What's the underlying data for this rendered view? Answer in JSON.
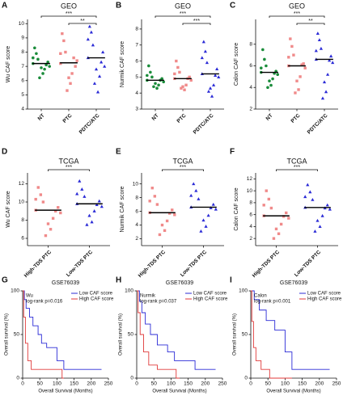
{
  "chart_data": [
    {
      "type": "strip",
      "label": "A",
      "title": "GEO",
      "y_label": "Wu CAF score",
      "categories": [
        "NT",
        "PTC",
        "PDTC/ATC"
      ],
      "colors": [
        "#1a8c3a",
        "#f08a8a",
        "#2b2bd6"
      ],
      "markers": [
        "circle",
        "square",
        "triangle"
      ],
      "values": [
        [
          7.2,
          6.8,
          7.5,
          7.0,
          6.5,
          7.9,
          7.3,
          6.9,
          8.3,
          7.1,
          6.2,
          7.6
        ],
        [
          7.2,
          6.5,
          8.0,
          7.4,
          5.8,
          8.8,
          7.0,
          6.2,
          9.3,
          7.6,
          5.3,
          7.9
        ],
        [
          7.6,
          6.3,
          8.5,
          7.0,
          5.2,
          9.4,
          8.0,
          6.8,
          9.8,
          7.3,
          5.8,
          8.9
        ]
      ],
      "means": [
        7.2,
        7.25,
        7.6
      ],
      "ylim": [
        4,
        10.3
      ],
      "yticks": [
        4,
        5,
        6,
        7,
        8,
        9,
        10
      ],
      "brackets": [
        {
          "label": "***",
          "between": [
            "NT",
            "PDTC/ATC"
          ]
        },
        {
          "label": "**",
          "between": [
            "PTC",
            "PDTC/ATC"
          ]
        }
      ]
    },
    {
      "type": "strip",
      "label": "B",
      "title": "GEO",
      "y_label": "Nurmik CAF score",
      "categories": [
        "NT",
        "PTC",
        "PDTC/ATC"
      ],
      "colors": [
        "#1a8c3a",
        "#f08a8a",
        "#2b2bd6"
      ],
      "markers": [
        "circle",
        "square",
        "triangle"
      ],
      "values": [
        [
          4.8,
          4.5,
          5.0,
          4.7,
          4.3,
          5.3,
          4.9,
          4.6,
          5.7,
          4.8,
          4.4,
          5.1
        ],
        [
          4.9,
          4.5,
          5.3,
          4.8,
          4.2,
          5.6,
          5.0,
          4.4,
          6.0,
          4.9,
          4.3,
          5.2
        ],
        [
          5.2,
          4.5,
          5.9,
          5.0,
          3.8,
          6.6,
          5.5,
          4.3,
          7.2,
          5.1,
          4.1,
          6.2
        ]
      ],
      "means": [
        4.8,
        4.9,
        5.2
      ],
      "ylim": [
        3,
        8.6
      ],
      "yticks": [
        3,
        4,
        5,
        6,
        7,
        8
      ],
      "brackets": [
        {
          "label": "***",
          "between": [
            "NT",
            "PDTC/ATC"
          ]
        },
        {
          "label": "***",
          "between": [
            "PTC",
            "PDTC/ATC"
          ]
        }
      ]
    },
    {
      "type": "strip",
      "label": "C",
      "title": "GEO",
      "y_label": "Calon CAF score",
      "categories": [
        "NT",
        "PTC",
        "PDTC/ATC"
      ],
      "colors": [
        "#1a8c3a",
        "#f08a8a",
        "#2b2bd6"
      ],
      "markers": [
        "circle",
        "square",
        "triangle"
      ],
      "values": [
        [
          5.4,
          4.8,
          6.0,
          5.2,
          4.2,
          6.6,
          5.5,
          4.6,
          7.5,
          5.3,
          4.0,
          5.8
        ],
        [
          6.0,
          5.0,
          7.0,
          5.8,
          3.8,
          7.8,
          6.2,
          4.6,
          8.5,
          6.1,
          3.5,
          6.8
        ],
        [
          6.6,
          5.2,
          7.6,
          6.3,
          3.6,
          8.4,
          6.9,
          4.5,
          9.0,
          6.5,
          3.0,
          7.4
        ]
      ],
      "means": [
        5.4,
        6.0,
        6.6
      ],
      "ylim": [
        2,
        10.3
      ],
      "yticks": [
        2,
        4,
        6,
        8
      ],
      "brackets": [
        {
          "label": "***",
          "between": [
            "NT",
            "PDTC/ATC"
          ]
        },
        {
          "label": "**",
          "between": [
            "PTC",
            "PDTC/ATC"
          ]
        }
      ]
    },
    {
      "type": "strip",
      "label": "D",
      "title": "TCGA",
      "y_label": "Wu CAF score",
      "categories": [
        "High-TDS PTC",
        "Low-TDS PTC"
      ],
      "colors": [
        "#f08a8a",
        "#2b2bd6"
      ],
      "markers": [
        "square",
        "triangle"
      ],
      "values": [
        [
          9.1,
          8.2,
          10.0,
          8.8,
          7.0,
          10.8,
          9.4,
          7.6,
          11.6,
          9.0,
          6.3,
          10.3
        ],
        [
          9.8,
          9.0,
          10.6,
          9.5,
          7.8,
          11.4,
          10.1,
          8.5,
          12.3,
          9.7,
          7.5,
          10.9
        ]
      ],
      "means": [
        9.1,
        9.8
      ],
      "ylim": [
        5.2,
        13.2
      ],
      "yticks": [
        6,
        8,
        10,
        12
      ],
      "brackets": [
        {
          "label": "***",
          "between": [
            "High-TDS PTC",
            "Low-TDS PTC"
          ]
        }
      ]
    },
    {
      "type": "strip",
      "label": "E",
      "title": "TCGA",
      "y_label": "Nurmik CAF score",
      "categories": [
        "High-TDS PTC",
        "Low-TDS PTC"
      ],
      "colors": [
        "#f08a8a",
        "#2b2bd6"
      ],
      "markers": [
        "square",
        "triangle"
      ],
      "values": [
        [
          5.8,
          4.6,
          7.0,
          5.5,
          3.2,
          8.2,
          6.2,
          4.0,
          9.4,
          5.7,
          2.6,
          7.5
        ],
        [
          6.6,
          5.4,
          7.8,
          6.3,
          3.8,
          9.0,
          7.0,
          4.7,
          10.0,
          6.5,
          3.1,
          8.3
        ]
      ],
      "means": [
        5.8,
        6.6
      ],
      "ylim": [
        1,
        11.6
      ],
      "yticks": [
        2,
        4,
        6,
        8,
        10
      ],
      "brackets": [
        {
          "label": "***",
          "between": [
            "High-TDS PTC",
            "Low-TDS PTC"
          ]
        }
      ]
    },
    {
      "type": "strip",
      "label": "F",
      "title": "TCGA",
      "y_label": "Calon CAF score",
      "categories": [
        "High-TDS PTC",
        "Low-TDS PTC"
      ],
      "colors": [
        "#f08a8a",
        "#2b2bd6"
      ],
      "markers": [
        "square",
        "triangle"
      ],
      "values": [
        [
          5.8,
          4.4,
          7.1,
          5.4,
          2.8,
          8.6,
          6.3,
          3.6,
          10.0,
          5.7,
          2.0,
          7.6
        ],
        [
          7.2,
          5.8,
          8.5,
          6.9,
          4.0,
          9.8,
          7.6,
          5.0,
          11.0,
          7.1,
          3.2,
          9.0
        ]
      ],
      "means": [
        5.8,
        7.2
      ],
      "ylim": [
        0.8,
        13
      ],
      "yticks": [
        2,
        4,
        6,
        8,
        10,
        12
      ],
      "brackets": [
        {
          "label": "***",
          "between": [
            "High-TDS PTC",
            "Low-TDS PTC"
          ]
        }
      ]
    },
    {
      "type": "line",
      "label": "G",
      "title": "GSE76039",
      "y_label": "Overall survival (%)",
      "x_label": "Overall Survival (Months)",
      "annotations": [
        "Wu",
        "log-rank p=0.016"
      ],
      "xlim": [
        0,
        250
      ],
      "ylim": [
        0,
        100
      ],
      "xticks": [
        0,
        50,
        100,
        150,
        200,
        250
      ],
      "yticks": [
        0,
        50,
        100
      ],
      "series": [
        {
          "name": "Low CAF score",
          "color": "#2b2bd6",
          "x": [
            0,
            5,
            5,
            10,
            10,
            20,
            20,
            30,
            30,
            45,
            45,
            55,
            55,
            70,
            70,
            100,
            100,
            120,
            120,
            230
          ],
          "y": [
            100,
            100,
            90,
            90,
            80,
            80,
            70,
            70,
            60,
            60,
            50,
            50,
            40,
            40,
            35,
            35,
            20,
            20,
            10,
            10
          ]
        },
        {
          "name": "High CAF score",
          "color": "#e03a3a",
          "x": [
            0,
            3,
            3,
            8,
            8,
            15,
            15,
            25,
            25,
            115,
            115,
            120
          ],
          "y": [
            100,
            100,
            70,
            70,
            40,
            40,
            20,
            20,
            10,
            10,
            0,
            0
          ]
        }
      ]
    },
    {
      "type": "line",
      "label": "H",
      "title": "GSE76039",
      "y_label": "Overall survival (%)",
      "x_label": "Overall Survival (Months)",
      "annotations": [
        "Nurmik",
        "log-rank p=0.037"
      ],
      "xlim": [
        0,
        250
      ],
      "ylim": [
        0,
        100
      ],
      "xticks": [
        0,
        50,
        100,
        150,
        200,
        250
      ],
      "yticks": [
        0,
        50,
        100
      ],
      "series": [
        {
          "name": "Low CAF score",
          "color": "#2b2bd6",
          "x": [
            0,
            8,
            8,
            15,
            15,
            25,
            25,
            40,
            40,
            60,
            60,
            90,
            90,
            110,
            110,
            170,
            170,
            230
          ],
          "y": [
            100,
            100,
            88,
            88,
            75,
            75,
            62,
            62,
            50,
            50,
            38,
            38,
            30,
            30,
            20,
            20,
            10,
            10
          ]
        },
        {
          "name": "High CAF score",
          "color": "#e03a3a",
          "x": [
            0,
            4,
            4,
            10,
            10,
            20,
            20,
            35,
            35,
            60,
            60,
            115,
            115,
            125
          ],
          "y": [
            100,
            100,
            75,
            75,
            50,
            50,
            30,
            30,
            15,
            15,
            10,
            10,
            0,
            0
          ]
        }
      ]
    },
    {
      "type": "line",
      "label": "I",
      "title": "GSE76039",
      "y_label": "Overall survival (%)",
      "x_label": "Overall Survival (Months)",
      "annotations": [
        "Calon",
        "log-rank p=0.001"
      ],
      "xlim": [
        0,
        250
      ],
      "ylim": [
        0,
        100
      ],
      "xticks": [
        0,
        50,
        100,
        150,
        200,
        250
      ],
      "yticks": [
        0,
        50,
        100
      ],
      "series": [
        {
          "name": "Low CAF score",
          "color": "#2b2bd6",
          "x": [
            0,
            10,
            10,
            25,
            25,
            45,
            45,
            70,
            70,
            100,
            100,
            120,
            120,
            230
          ],
          "y": [
            100,
            100,
            90,
            90,
            78,
            78,
            66,
            66,
            55,
            55,
            30,
            30,
            10,
            10
          ]
        },
        {
          "name": "High CAF score",
          "color": "#e03a3a",
          "x": [
            0,
            3,
            3,
            8,
            8,
            15,
            15,
            30,
            30,
            55,
            55,
            120
          ],
          "y": [
            100,
            100,
            65,
            65,
            35,
            35,
            20,
            20,
            10,
            10,
            0,
            0
          ]
        }
      ]
    }
  ]
}
